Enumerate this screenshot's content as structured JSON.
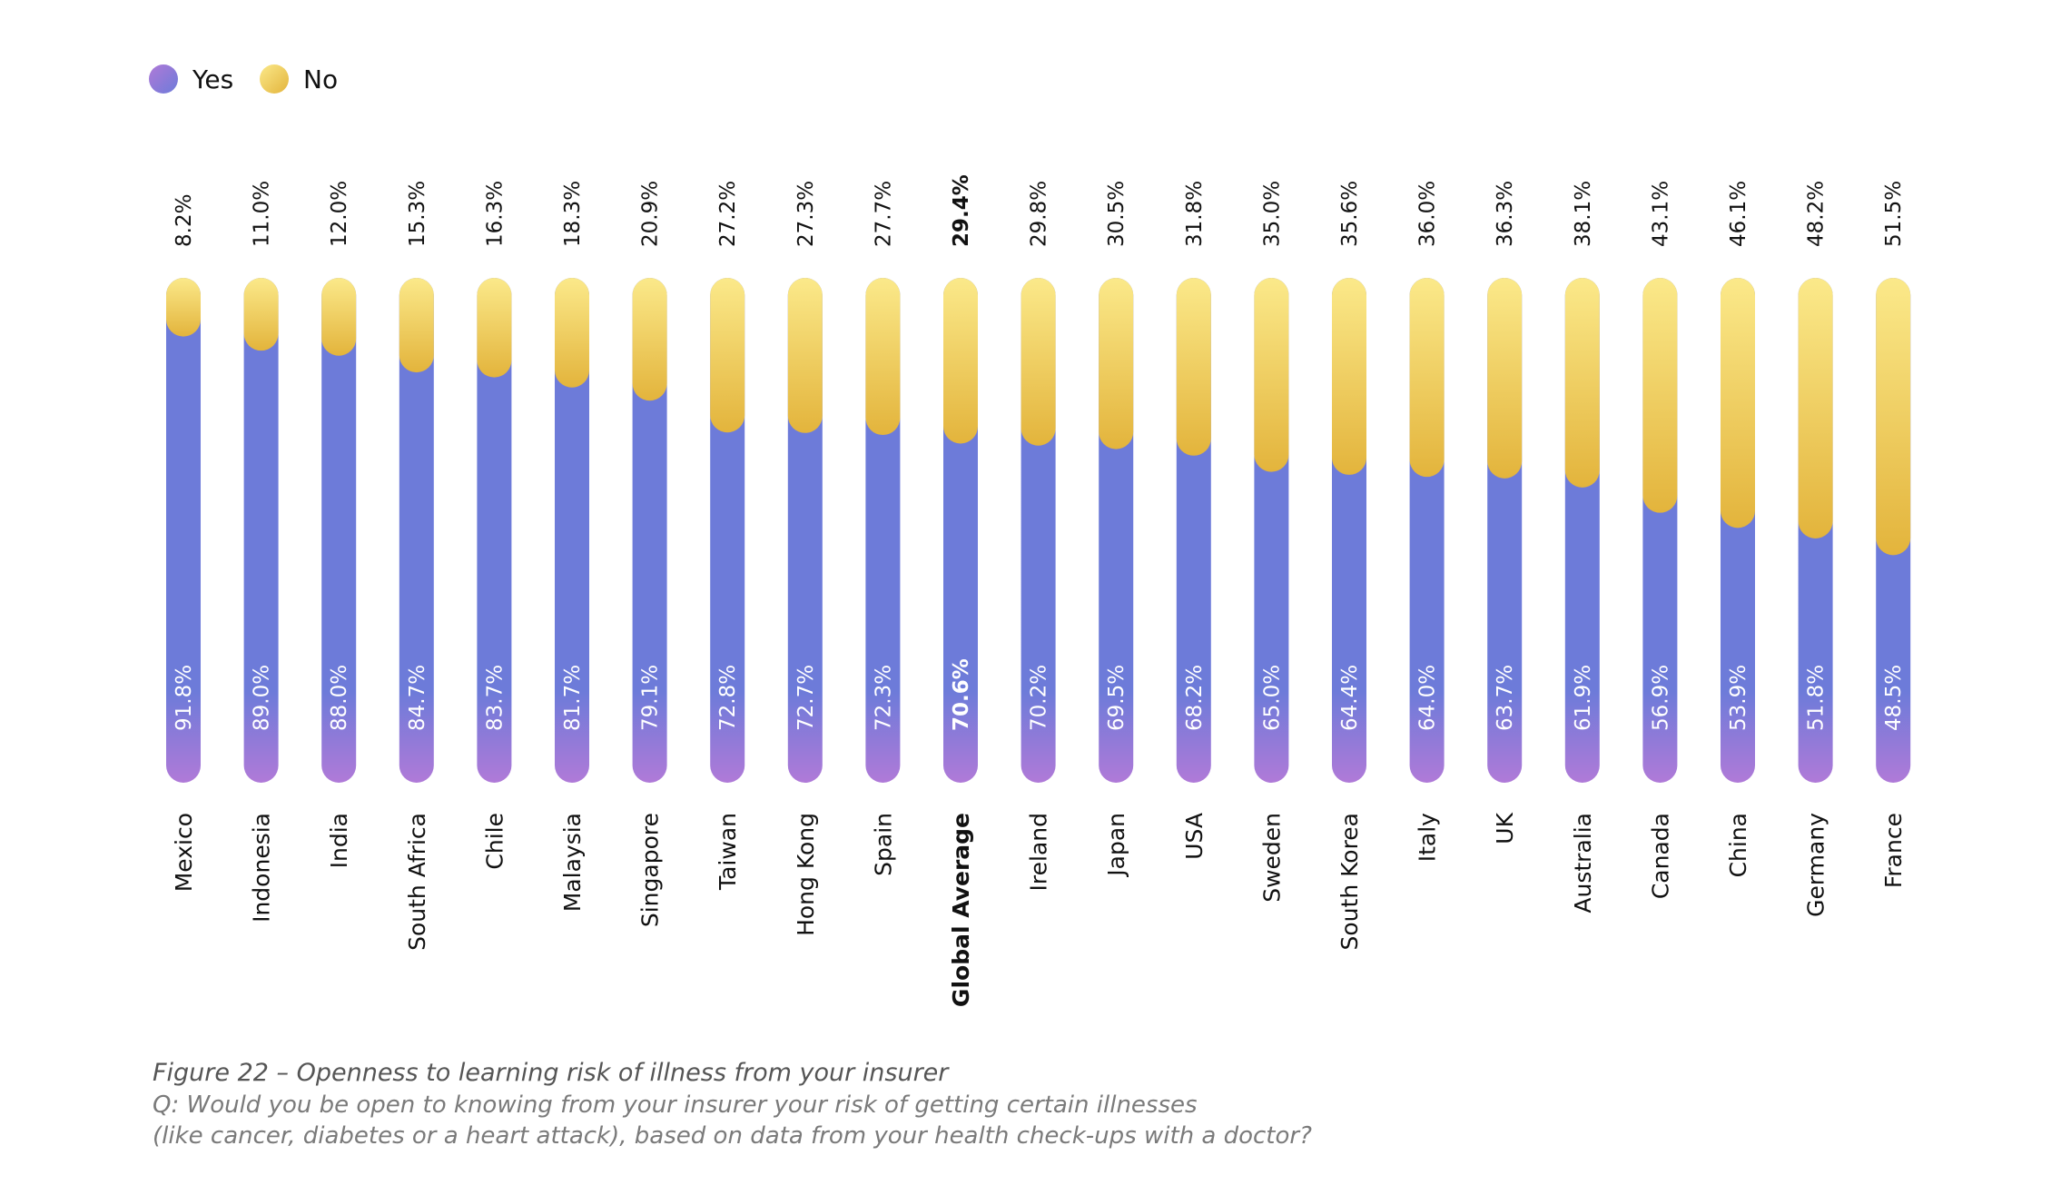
{
  "legend": [
    {
      "label": "Yes",
      "color": "#6f7bd9"
    },
    {
      "label": "No",
      "color": "#f2d66b"
    }
  ],
  "colors": {
    "yes_top": "#6d7bd9",
    "yes_bottom": "#b07ad8",
    "no_top": "#fbe98a",
    "no_bottom": "#e3b43c"
  },
  "chart_data": {
    "type": "bar",
    "stacked": true,
    "orientation": "vertical",
    "value_unit": "%",
    "categories": [
      "Mexico",
      "Indonesia",
      "India",
      "South Africa",
      "Chile",
      "Malaysia",
      "Singapore",
      "Taiwan",
      "Hong Kong",
      "Spain",
      "Global Average",
      "Ireland",
      "Japan",
      "USA",
      "Sweden",
      "South Korea",
      "Italy",
      "UK",
      "Australia",
      "Canada",
      "China",
      "Germany",
      "France"
    ],
    "highlight_category": "Global Average",
    "series": [
      {
        "name": "Yes",
        "values": [
          91.8,
          89.0,
          88.0,
          84.7,
          83.7,
          81.7,
          79.1,
          72.8,
          72.7,
          72.3,
          70.6,
          70.2,
          69.5,
          68.2,
          65.0,
          64.4,
          64.0,
          63.7,
          61.9,
          56.9,
          53.9,
          51.8,
          48.5
        ]
      },
      {
        "name": "No",
        "values": [
          8.2,
          11.0,
          12.0,
          15.3,
          16.3,
          18.3,
          20.9,
          27.2,
          27.3,
          27.7,
          29.4,
          29.8,
          30.5,
          31.8,
          35.0,
          35.6,
          36.0,
          36.3,
          38.1,
          43.1,
          46.1,
          48.2,
          51.5
        ]
      }
    ],
    "yes_labels": [
      "91.8%",
      "89.0%",
      "88.0%",
      "84.7%",
      "83.7%",
      "81.7%",
      "79.1%",
      "72.8%",
      "72.7%",
      "72.3%",
      "70.6%",
      "70.2%",
      "69.5%",
      "68.2%",
      "65.0%",
      "64.4%",
      "64.0%",
      "63.7%",
      "61.9%",
      "56.9%",
      "53.9%",
      "51.8%",
      "48.5%"
    ],
    "no_labels": [
      "8.2%",
      "11.0%",
      "12.0%",
      "15.3%",
      "16.3%",
      "18.3%",
      "20.9%",
      "27.2%",
      "27.3%",
      "27.7%",
      "29.4%",
      "29.8%",
      "30.5%",
      "31.8%",
      "35.0%",
      "35.6%",
      "36.0%",
      "36.3%",
      "38.1%",
      "43.1%",
      "46.1%",
      "48.2%",
      "51.5%"
    ],
    "legend_placement": "top-left",
    "grid": false
  },
  "caption": {
    "title": "Figure 22 – Openness to learning risk of illness from your insurer",
    "lines": [
      "Q: Would you be open to knowing from your insurer your risk of getting certain illnesses",
      "(like cancer, diabetes or a heart attack), based on data from your health check-ups with a doctor?"
    ]
  }
}
